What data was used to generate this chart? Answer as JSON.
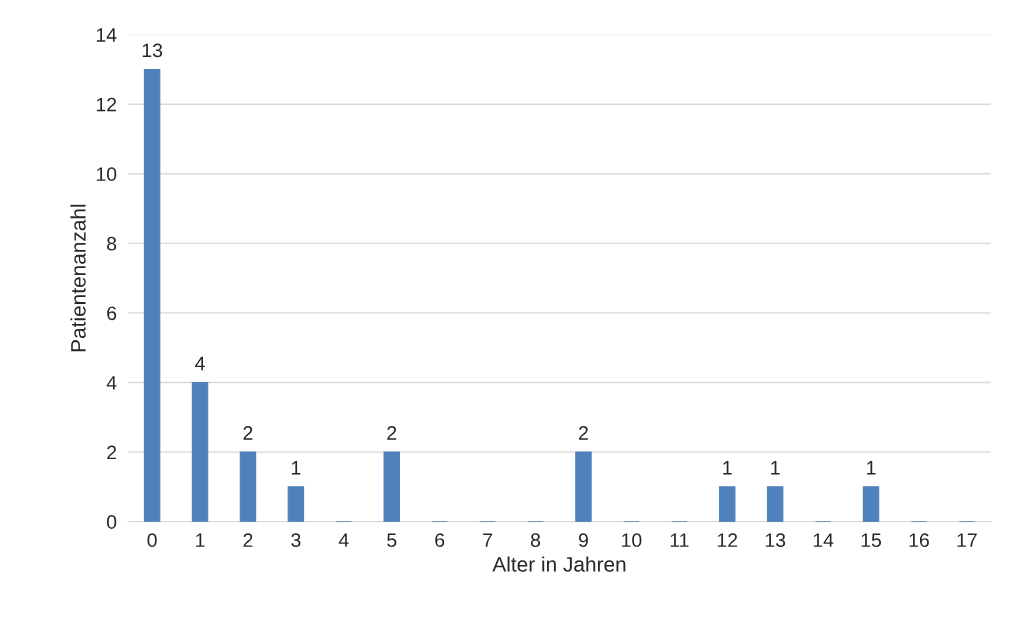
{
  "chart_data": {
    "type": "bar",
    "xlabel": "Alter in Jahren",
    "ylabel": "Patientenanzahl",
    "categories": [
      "0",
      "1",
      "2",
      "3",
      "4",
      "5",
      "6",
      "7",
      "8",
      "9",
      "10",
      "11",
      "12",
      "13",
      "14",
      "15",
      "16",
      "17"
    ],
    "values": [
      13,
      4,
      2,
      1,
      0,
      2,
      0,
      0,
      0,
      2,
      0,
      0,
      1,
      1,
      0,
      1,
      0,
      0
    ],
    "value_labels": [
      "13",
      "4",
      "2",
      "1",
      null,
      "2",
      null,
      null,
      null,
      "2",
      null,
      null,
      "1",
      "1",
      null,
      "1",
      null,
      null
    ],
    "color": "#4f81bd",
    "ylim": [
      0,
      14
    ],
    "yticks": [
      0,
      2,
      4,
      6,
      8,
      10,
      12,
      14
    ],
    "grid": "y",
    "legend": false
  }
}
